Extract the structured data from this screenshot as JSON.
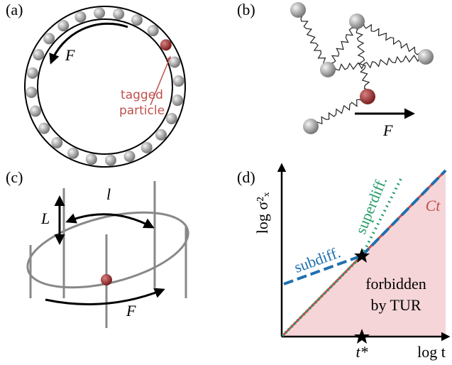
{
  "panels": {
    "a": {
      "label": "(a)",
      "force": "F",
      "annotation": [
        "tagged",
        "particle"
      ]
    },
    "b": {
      "label": "(b)",
      "force": "F"
    },
    "c": {
      "label": "(c)",
      "length": "l",
      "spacing": "L",
      "force": "F"
    },
    "d": {
      "label": "(d)",
      "y_axis": "log σ²ₓ",
      "x_axis": "log t",
      "line": "Ct",
      "curves": [
        "superdiff.",
        "subdiff."
      ],
      "region": [
        "forbidden",
        "by TUR"
      ],
      "marker": "t*"
    }
  }
}
